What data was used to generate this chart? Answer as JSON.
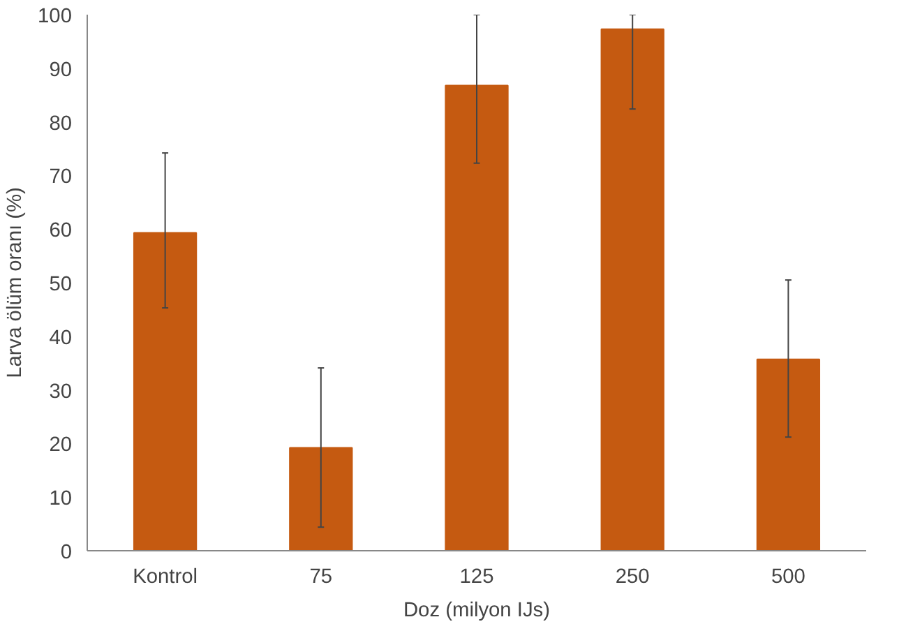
{
  "chart_data": {
    "type": "bar",
    "xlabel": "Doz (milyon IJs)",
    "ylabel": "Larva ölüm oranı (%)",
    "categories": [
      "Kontrol",
      "75",
      "125",
      "250",
      "500"
    ],
    "values": [
      59.3,
      19.2,
      86.8,
      97.3,
      35.7
    ],
    "errors": [
      [
        45.3,
        74.2
      ],
      [
        4.4,
        34.1
      ],
      [
        72.3,
        100
      ],
      [
        82.4,
        100
      ],
      [
        21.2,
        50.5
      ]
    ],
    "color": "#c55a11",
    "ylim": [
      0,
      100
    ],
    "yticks": [
      0,
      10,
      20,
      30,
      40,
      50,
      60,
      70,
      80,
      90,
      100
    ],
    "grid": false
  }
}
